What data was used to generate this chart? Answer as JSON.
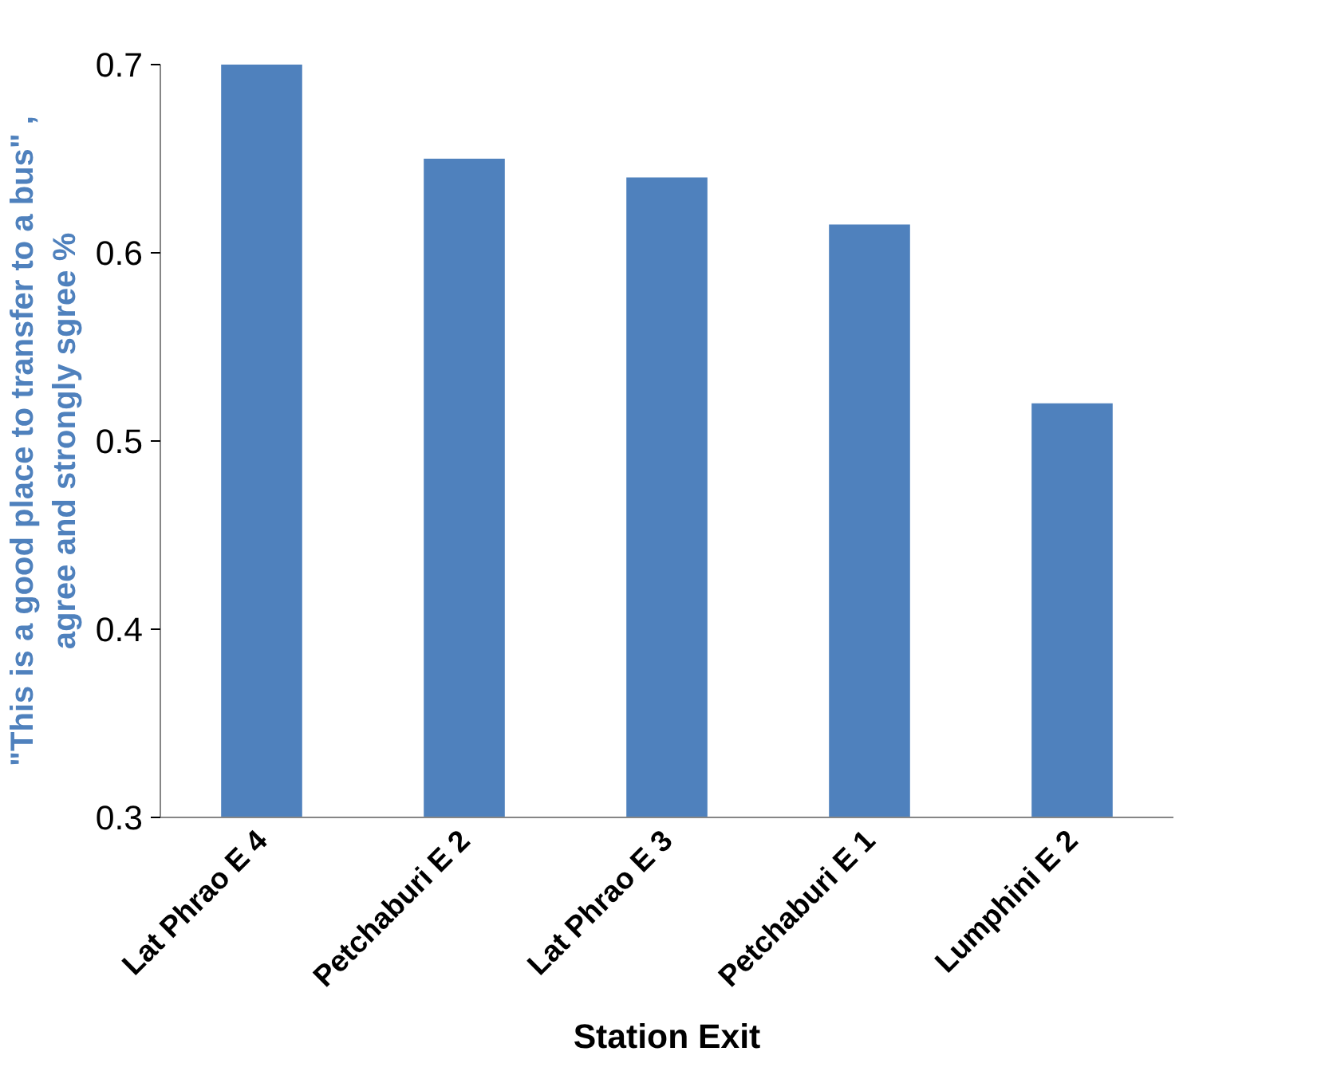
{
  "chart_data": {
    "type": "bar",
    "categories": [
      "Lat Phrao E 4",
      "Petchaburi E 2",
      "Lat Phrao E 3",
      "Petchaburi E 1",
      "Lumphini E 2"
    ],
    "values": [
      0.7,
      0.65,
      0.64,
      0.615,
      0.52
    ],
    "color": "#4f81bd",
    "xlabel": "Station Exit",
    "ylabel": "\"This is a good place to transfer to a bus\" ,\nagree and strongly sgree %",
    "ylim": [
      0.3,
      0.7
    ],
    "yticks": [
      0.3,
      0.4,
      0.5,
      0.6,
      0.7
    ],
    "grid": false
  }
}
